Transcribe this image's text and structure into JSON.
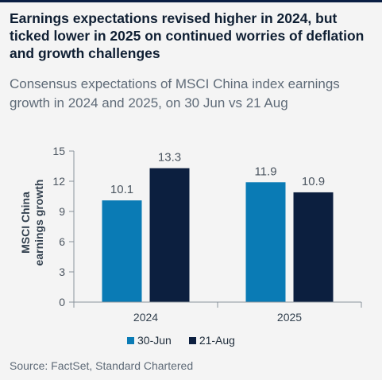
{
  "header": {
    "title": "Earnings expectations revised higher in 2024, but ticked lower in 2025 on continued worries of deflation and growth challenges",
    "subtitle": "Consensus expectations of MSCI China index earnings growth in 2024 and 2025, on 30 Jun vs 21 Aug"
  },
  "chart_data": {
    "type": "bar",
    "categories": [
      "2024",
      "2025"
    ],
    "series": [
      {
        "name": "30-Jun",
        "values": [
          10.1,
          11.9
        ],
        "color": "#0a7bb5"
      },
      {
        "name": "21-Aug",
        "values": [
          13.3,
          10.9
        ],
        "color": "#0c1f3f"
      }
    ],
    "ylabel": "MSCI China earnings growth",
    "ylim": [
      0,
      15
    ],
    "yticks": [
      0,
      3,
      6,
      9,
      12,
      15
    ],
    "grid": false,
    "legend": "bottom"
  },
  "footer": {
    "source": "Source: FactSet, Standard Chartered"
  }
}
